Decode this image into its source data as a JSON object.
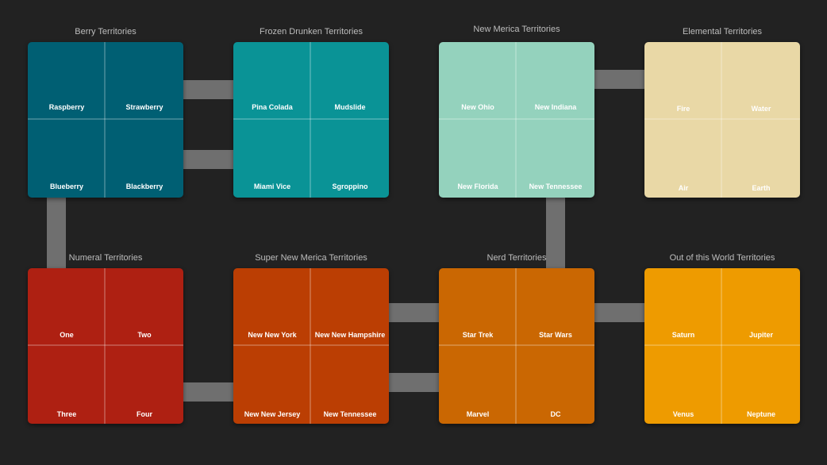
{
  "groups": [
    {
      "title": "Berry Territories",
      "color": "#005f73",
      "territories": [
        "Raspberry",
        "Strawberry",
        "Blueberry",
        "Blackberry"
      ]
    },
    {
      "title": "Frozen Drunken Territories",
      "color": "#0a9396",
      "territories": [
        "Pina Colada",
        "Mudslide",
        "Miami Vice",
        "Sgroppino"
      ]
    },
    {
      "title": "New Merica Territories",
      "color": "#94d2bd",
      "territories": [
        "New Ohio",
        "New Indiana",
        "New Florida",
        "New Tennessee"
      ]
    },
    {
      "title": "Elemental Territories",
      "color": "#e9d8a6",
      "territories": [
        "Fire",
        "Water",
        "Air",
        "Earth"
      ]
    },
    {
      "title": "Numeral Territories",
      "color": "#ae2012",
      "territories": [
        "One",
        "Two",
        "Three",
        "Four"
      ]
    },
    {
      "title": "Super New Merica Territories",
      "color": "#bb3e03",
      "territories": [
        "New New York",
        "New New Hampshire",
        "New New Jersey",
        "New Tennessee"
      ]
    },
    {
      "title": "Nerd Territories",
      "color": "#ca6702",
      "territories": [
        "Star Trek",
        "Star Wars",
        "Marvel",
        "DC"
      ]
    },
    {
      "title": "Out of this World Territories",
      "color": "#ee9b00",
      "territories": [
        "Saturn",
        "Jupiter",
        "Venus",
        "Neptune"
      ]
    }
  ],
  "connector_color": "#6f6f6f"
}
